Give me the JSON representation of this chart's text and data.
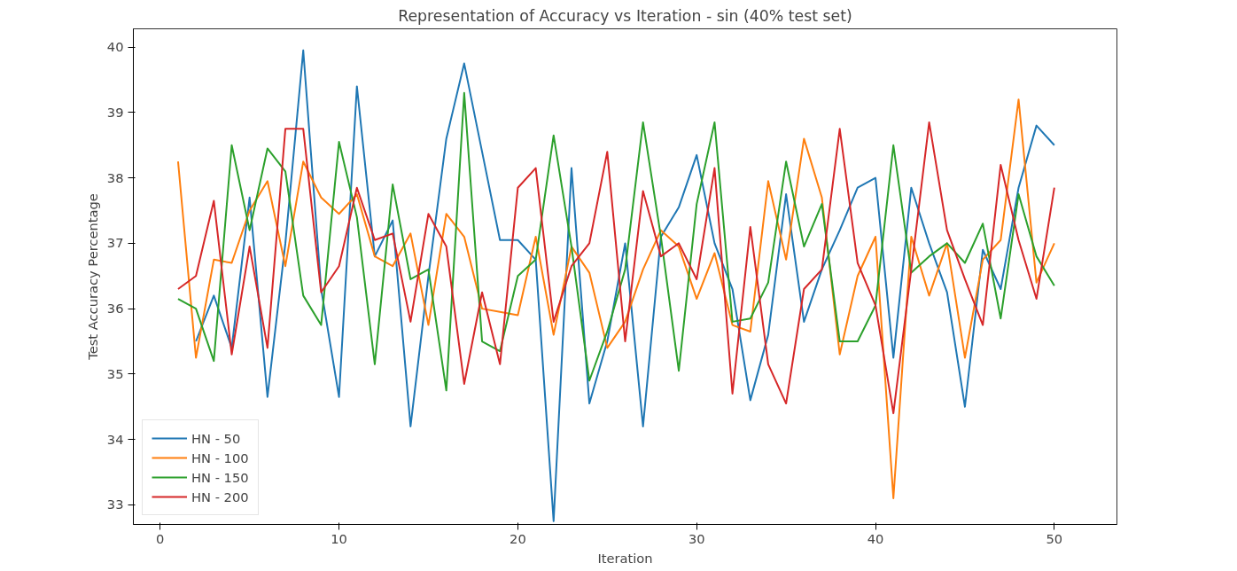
{
  "chart_data": {
    "type": "line",
    "title": "Representation of Accuracy vs Iteration - sin (40% test set)",
    "xlabel": "Iteration",
    "ylabel": "Test Accuracy Percentage",
    "x": [
      1,
      2,
      3,
      4,
      5,
      6,
      7,
      8,
      9,
      10,
      11,
      12,
      13,
      14,
      15,
      16,
      17,
      18,
      19,
      20,
      21,
      22,
      23,
      24,
      25,
      26,
      27,
      28,
      29,
      30,
      31,
      32,
      33,
      34,
      35,
      36,
      37,
      38,
      39,
      40,
      41,
      42,
      43,
      44,
      45,
      46,
      47,
      48,
      49,
      50
    ],
    "xlim": [
      -1.5,
      53.5
    ],
    "xticks": [
      0,
      10,
      20,
      30,
      40,
      50
    ],
    "ylim": [
      32.7,
      40.28
    ],
    "yticks": [
      33,
      34,
      35,
      36,
      37,
      38,
      39,
      40
    ],
    "grid": false,
    "legend": "bottom left",
    "marker": "none",
    "line_style": "solid",
    "series": [
      {
        "name": "HN - 50",
        "color": "#1f77b4",
        "values": [
          null,
          35.5,
          36.2,
          35.4,
          37.7,
          34.65,
          37.0,
          39.95,
          36.3,
          34.65,
          39.4,
          36.8,
          37.35,
          34.2,
          36.5,
          38.6,
          39.75,
          38.4,
          37.05,
          37.05,
          36.75,
          32.75,
          38.15,
          34.55,
          35.5,
          37.0,
          34.2,
          37.1,
          37.55,
          38.35,
          37.0,
          36.3,
          34.6,
          35.6,
          37.75,
          35.8,
          36.6,
          37.2,
          37.85,
          38.0,
          35.25,
          37.85,
          37.0,
          36.25,
          34.5,
          36.9,
          36.3,
          37.85,
          38.8,
          38.5
        ]
      },
      {
        "name": "HN - 100",
        "color": "#ff7f0e",
        "values": [
          38.25,
          35.25,
          36.75,
          36.7,
          37.5,
          37.95,
          36.65,
          38.25,
          37.7,
          37.45,
          37.75,
          36.8,
          36.65,
          37.15,
          35.75,
          37.45,
          37.1,
          36.0,
          35.95,
          35.9,
          37.1,
          35.6,
          36.95,
          36.55,
          35.4,
          35.8,
          36.6,
          37.2,
          36.95,
          36.15,
          36.85,
          35.75,
          35.65,
          37.95,
          36.75,
          38.6,
          37.7,
          35.3,
          36.5,
          37.1,
          33.1,
          37.1,
          36.2,
          37.0,
          35.25,
          36.75,
          37.05,
          39.2,
          36.4,
          37.0
        ]
      },
      {
        "name": "HN - 150",
        "color": "#2ca02c",
        "values": [
          36.15,
          36.0,
          35.2,
          38.5,
          37.2,
          38.45,
          38.1,
          36.2,
          35.75,
          38.55,
          37.4,
          35.15,
          37.9,
          36.45,
          36.6,
          34.75,
          39.3,
          35.5,
          35.35,
          36.5,
          36.75,
          38.65,
          36.95,
          34.9,
          35.65,
          36.6,
          38.85,
          37.1,
          35.05,
          37.6,
          38.85,
          35.8,
          35.85,
          36.4,
          38.25,
          36.95,
          37.6,
          35.5,
          35.5,
          36.05,
          38.5,
          36.55,
          36.8,
          37.0,
          36.7,
          37.3,
          35.85,
          37.75,
          36.8,
          36.35
        ]
      },
      {
        "name": "HN - 200",
        "color": "#d62728",
        "values": [
          36.3,
          36.5,
          37.65,
          35.3,
          36.95,
          35.4,
          38.75,
          38.75,
          36.25,
          36.65,
          37.85,
          37.05,
          37.15,
          35.8,
          37.45,
          36.95,
          34.85,
          36.25,
          35.15,
          37.85,
          38.15,
          35.8,
          36.65,
          37.0,
          38.4,
          35.5,
          37.8,
          36.8,
          37.0,
          36.45,
          38.15,
          34.7,
          37.25,
          35.15,
          34.55,
          36.3,
          36.6,
          38.75,
          36.7,
          36.05,
          34.4,
          36.6,
          38.85,
          37.2,
          36.45,
          35.75,
          38.2,
          37.05,
          36.15,
          37.85
        ]
      }
    ]
  }
}
